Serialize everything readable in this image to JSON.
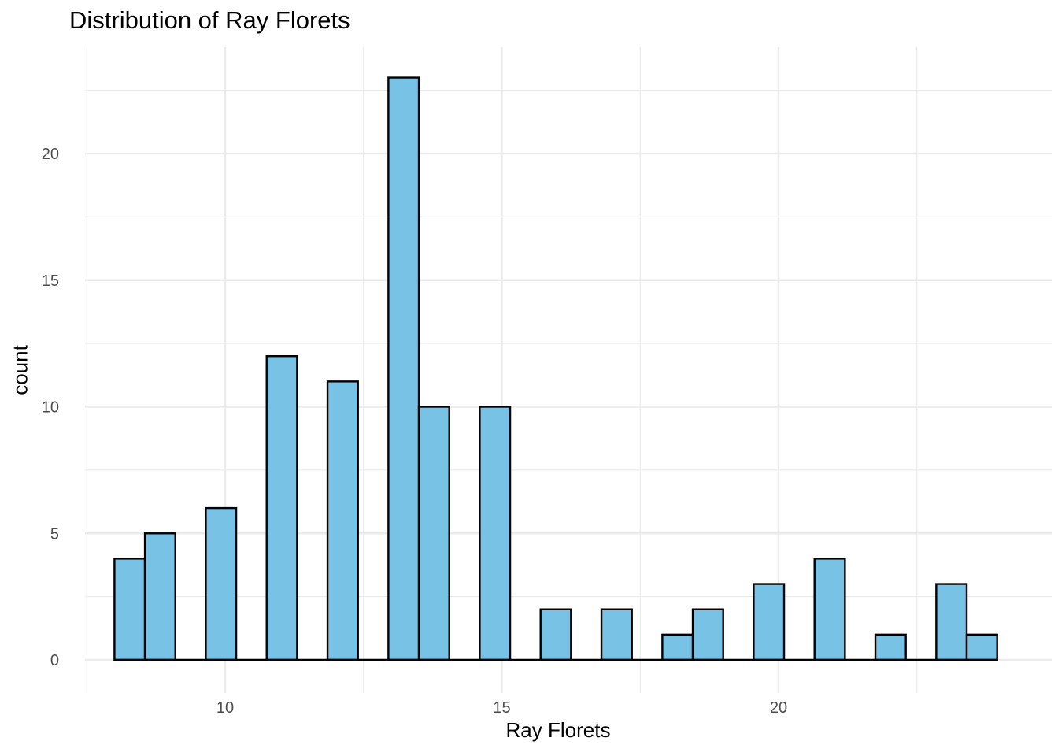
{
  "chart_data": {
    "type": "bar",
    "subtype": "histogram",
    "title": "Distribution of Ray Florets",
    "xlabel": "Ray Florets",
    "ylabel": "count",
    "xlim": [
      7.5,
      24.3
    ],
    "ylim": [
      -1.0,
      23.0
    ],
    "x_ticks": [
      10,
      15,
      20
    ],
    "y_ticks": [
      0,
      5,
      10,
      15,
      20
    ],
    "bin_width": 0.55,
    "bins": [
      {
        "start": 8.0,
        "end": 8.55,
        "count": 4
      },
      {
        "start": 8.55,
        "end": 9.1,
        "count": 5
      },
      {
        "start": 9.65,
        "end": 10.2,
        "count": 6
      },
      {
        "start": 10.75,
        "end": 11.3,
        "count": 12
      },
      {
        "start": 11.85,
        "end": 12.4,
        "count": 11
      },
      {
        "start": 12.95,
        "end": 13.5,
        "count": 23
      },
      {
        "start": 13.5,
        "end": 14.05,
        "count": 10
      },
      {
        "start": 14.6,
        "end": 15.15,
        "count": 10
      },
      {
        "start": 15.7,
        "end": 16.25,
        "count": 2
      },
      {
        "start": 16.8,
        "end": 17.35,
        "count": 2
      },
      {
        "start": 17.9,
        "end": 18.45,
        "count": 1
      },
      {
        "start": 18.45,
        "end": 19.0,
        "count": 2
      },
      {
        "start": 19.55,
        "end": 20.1,
        "count": 3
      },
      {
        "start": 20.65,
        "end": 21.2,
        "count": 4
      },
      {
        "start": 21.75,
        "end": 22.3,
        "count": 1
      },
      {
        "start": 22.85,
        "end": 23.4,
        "count": 3
      },
      {
        "start": 23.4,
        "end": 23.95,
        "count": 1
      }
    ],
    "bar_fill": "#77c2e5",
    "bar_stroke": "#000000",
    "grid": true,
    "grid_color": "#ebebeb",
    "legend": "none"
  }
}
